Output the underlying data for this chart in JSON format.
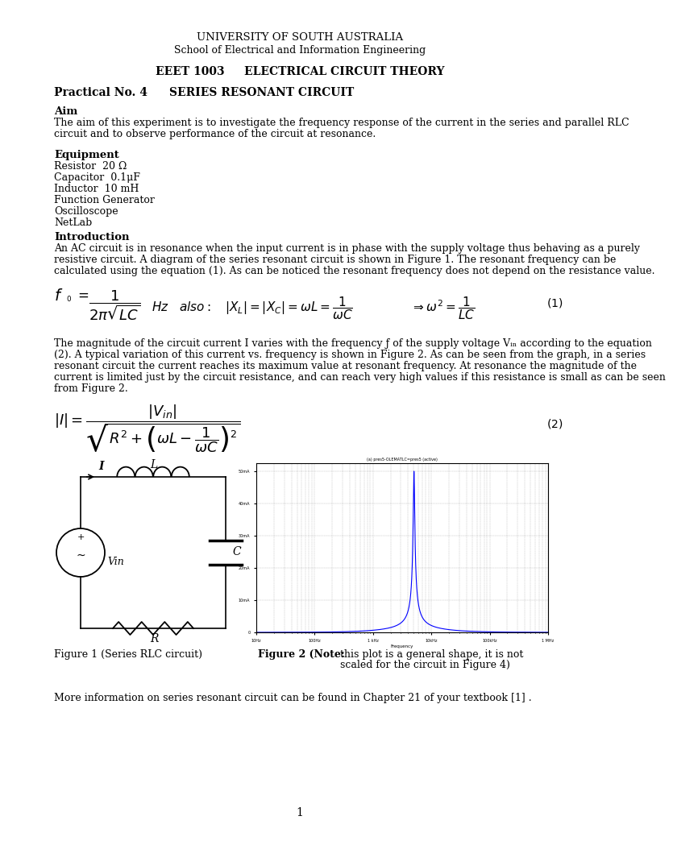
{
  "bg_color": "#ffffff",
  "university_line1": "UNIVERSITY OF SOUTH AUSTRALIA",
  "university_line2": "School of Electrical and Information Engineering",
  "course_code": "EEET 1003",
  "course_name": "ELECTRICAL CIRCUIT THEORY",
  "practical_no": "Practical No. 4",
  "practical_title": "SERIES RESONANT CIRCUIT",
  "aim_heading": "Aim",
  "aim_text": "The aim of this experiment is to investigate the frequency response of the current in the series and parallel RLC\ncircuit and to observe performance of the circuit at resonance.",
  "equipment_heading": "Equipment",
  "equipment_items": [
    "Resistor  20 Ω",
    "Capacitor  0.1μF",
    "Inductor  10 mH",
    "Function Generator",
    "Oscilloscope",
    "NetLab"
  ],
  "intro_heading": "Introduction",
  "intro_text": "An AC circuit is in resonance when the input current is in phase with the supply voltage thus behaving as a purely\nresistive circuit. A diagram of the series resonant circuit is shown in Figure 1. The resonant frequency can be\ncalculated using the equation (1). As can be noticed the resonant frequency does not depend on the resistance value.",
  "paragraph2": "The magnitude of the circuit current Ⅰ varies with the frequency ƒ of the supply voltage Vᵢₙ according to the equation\n(2). A typical variation of this current vs. frequency is shown in Figure 2. As can be seen from the graph, in a series\nresonant circuit the current reaches its maximum value at resonant frequency. At resonance the magnitude of the\ncurrent is limited just by the circuit resistance, and can reach very high values if this resistance is small as can be seen\nfrom Figure 2.",
  "figure1_caption": "Figure 1 (Series RLC circuit)",
  "figure2_caption_bold": "Figure 2 (Note:",
  "figure2_caption_normal": "  this plot is a general shape, it is not\nscaled for the circuit in Figure 4)",
  "footer_text": "More information on series resonant circuit can be found in Chapter 21 of your textbook [1] .",
  "page_number": "1"
}
